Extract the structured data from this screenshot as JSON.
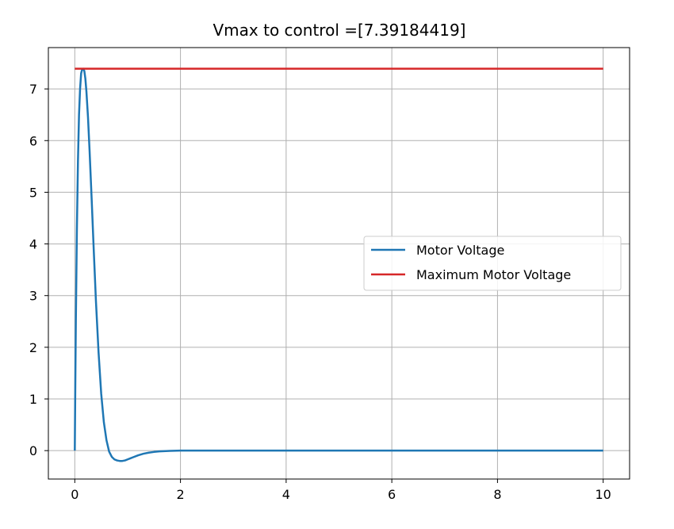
{
  "chart_data": {
    "type": "line",
    "title": "Vmax to control =[7.39184419]",
    "xlabel": "",
    "ylabel": "",
    "xlim": [
      -0.5,
      10.5
    ],
    "ylim": [
      -0.55,
      7.8
    ],
    "xticks": [
      0,
      2,
      4,
      6,
      8,
      10
    ],
    "yticks": [
      0,
      1,
      2,
      3,
      4,
      5,
      6,
      7
    ],
    "grid": true,
    "legend_position": "center-right",
    "series": [
      {
        "name": "Motor Voltage",
        "color": "#1f77b4",
        "x": [
          0,
          0.01,
          0.02,
          0.04,
          0.06,
          0.08,
          0.1,
          0.12,
          0.14,
          0.16,
          0.18,
          0.2,
          0.22,
          0.25,
          0.28,
          0.32,
          0.36,
          0.4,
          0.45,
          0.5,
          0.55,
          0.6,
          0.65,
          0.7,
          0.75,
          0.8,
          0.85,
          0.9,
          0.95,
          1.0,
          1.05,
          1.1,
          1.2,
          1.3,
          1.4,
          1.5,
          1.6,
          1.8,
          2.0,
          2.5,
          3,
          4,
          5,
          6,
          7,
          8,
          9,
          10
        ],
        "y": [
          0,
          1.3,
          2.5,
          4.3,
          5.6,
          6.5,
          7.0,
          7.3,
          7.38,
          7.39,
          7.35,
          7.2,
          6.95,
          6.45,
          5.8,
          4.85,
          3.85,
          2.9,
          1.9,
          1.1,
          0.55,
          0.2,
          -0.02,
          -0.12,
          -0.17,
          -0.19,
          -0.2,
          -0.2,
          -0.19,
          -0.17,
          -0.15,
          -0.13,
          -0.09,
          -0.06,
          -0.04,
          -0.025,
          -0.015,
          -0.005,
          0,
          0,
          0,
          0,
          0,
          0,
          0,
          0,
          0,
          0
        ]
      },
      {
        "name": "Maximum Motor Voltage",
        "color": "#d62728",
        "x": [
          0,
          10
        ],
        "y": [
          7.39184419,
          7.39184419
        ]
      }
    ]
  }
}
